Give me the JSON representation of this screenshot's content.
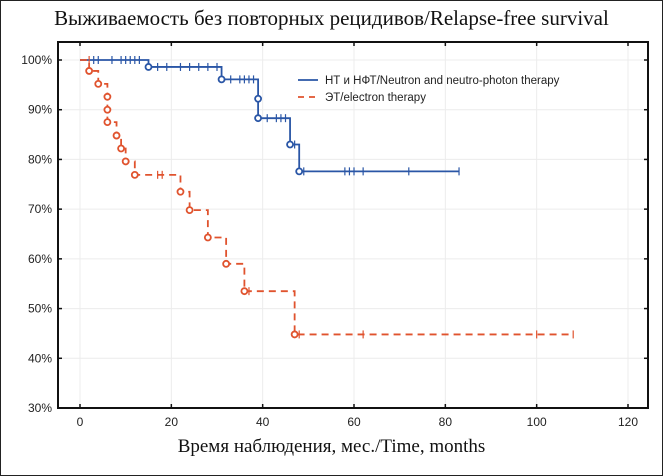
{
  "chart_data": {
    "type": "line",
    "subtype": "kaplan-meier-step",
    "title": "Выживаемость без повторных рецидивов/Relapse-free survival",
    "xlabel": "Время наблюдения, мес./Time, months",
    "ylabel": "",
    "xlim": [
      0,
      120
    ],
    "ylim": [
      30,
      100
    ],
    "xticks": [
      0,
      20,
      40,
      60,
      80,
      100,
      120
    ],
    "yticks": [
      30,
      40,
      50,
      60,
      70,
      80,
      90,
      100
    ],
    "ytick_labels": [
      "30%",
      "40%",
      "50%",
      "60%",
      "70%",
      "80%",
      "90%",
      "100%"
    ],
    "grid": true,
    "legend_position": "top-right",
    "series": [
      {
        "name": "НТ и НФТ/Neutron and neutro-photon therapy",
        "color": "#2a56a6",
        "style": "solid",
        "steps": [
          [
            0,
            100
          ],
          [
            15,
            98.6
          ],
          [
            31,
            96.1
          ],
          [
            39,
            92.2
          ],
          [
            39,
            88.3
          ],
          [
            46,
            83.0
          ],
          [
            48,
            77.6
          ],
          [
            83,
            77.6
          ]
        ],
        "events": [
          [
            15,
            98.6
          ],
          [
            31,
            96.1
          ],
          [
            39,
            92.2
          ],
          [
            39,
            88.3
          ],
          [
            46,
            83.0
          ],
          [
            48,
            77.6
          ]
        ],
        "censored": [
          [
            3,
            100
          ],
          [
            4,
            100
          ],
          [
            7,
            100
          ],
          [
            9,
            100
          ],
          [
            10,
            100
          ],
          [
            11,
            100
          ],
          [
            12,
            100
          ],
          [
            13,
            100
          ],
          [
            17,
            98.6
          ],
          [
            19,
            98.6
          ],
          [
            22,
            98.6
          ],
          [
            24,
            98.6
          ],
          [
            26,
            98.6
          ],
          [
            28,
            98.6
          ],
          [
            30,
            98.6
          ],
          [
            33,
            96.1
          ],
          [
            35,
            96.1
          ],
          [
            36,
            96.1
          ],
          [
            37,
            96.1
          ],
          [
            38,
            96.1
          ],
          [
            41,
            88.3
          ],
          [
            43,
            88.3
          ],
          [
            44,
            88.3
          ],
          [
            45,
            88.3
          ],
          [
            47,
            83.0
          ],
          [
            49,
            77.6
          ],
          [
            58,
            77.6
          ],
          [
            59,
            77.6
          ],
          [
            60,
            77.6
          ],
          [
            62,
            77.6
          ],
          [
            72,
            77.6
          ],
          [
            83,
            77.6
          ]
        ]
      },
      {
        "name": "ЭТ/electron therapy",
        "color": "#e0532e",
        "style": "dashed",
        "steps": [
          [
            0,
            100
          ],
          [
            2,
            97.8
          ],
          [
            4,
            95.2
          ],
          [
            6,
            92.6
          ],
          [
            6,
            90.0
          ],
          [
            6,
            87.5
          ],
          [
            8,
            84.8
          ],
          [
            9,
            82.2
          ],
          [
            10,
            79.6
          ],
          [
            12,
            76.9
          ],
          [
            22,
            73.5
          ],
          [
            24,
            69.8
          ],
          [
            28,
            64.3
          ],
          [
            32,
            59.0
          ],
          [
            36,
            53.5
          ],
          [
            47,
            44.8
          ],
          [
            108,
            44.8
          ]
        ],
        "events": [
          [
            2,
            97.8
          ],
          [
            4,
            95.2
          ],
          [
            6,
            92.6
          ],
          [
            6,
            90.0
          ],
          [
            6,
            87.5
          ],
          [
            8,
            84.8
          ],
          [
            9,
            82.2
          ],
          [
            10,
            79.6
          ],
          [
            12,
            76.9
          ],
          [
            22,
            73.5
          ],
          [
            24,
            69.8
          ],
          [
            28,
            64.3
          ],
          [
            32,
            59.0
          ],
          [
            36,
            53.5
          ],
          [
            47,
            44.8
          ]
        ],
        "censored": [
          [
            2,
            100
          ],
          [
            17,
            76.9
          ],
          [
            18,
            76.9
          ],
          [
            37,
            53.5
          ],
          [
            48,
            44.8
          ],
          [
            62,
            44.8
          ],
          [
            100,
            44.8
          ],
          [
            108,
            44.8
          ]
        ]
      }
    ]
  }
}
